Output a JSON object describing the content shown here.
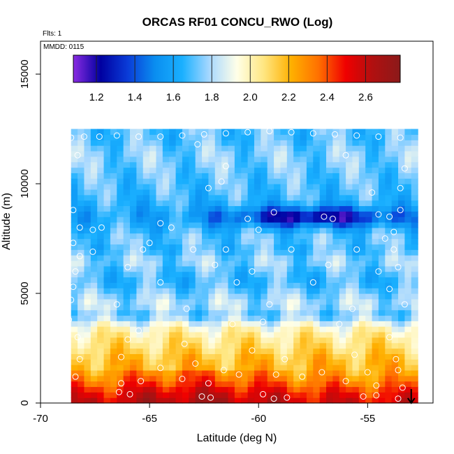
{
  "chart_data": {
    "type": "heatmap",
    "title": "ORCAS RF01 CONCU_RWO (Log)",
    "annotations": [
      "Flts: 1",
      "MMDD: 0115"
    ],
    "xlabel": "Latitude (deg N)",
    "ylabel": "Altitude (m)",
    "xlim": [
      -70,
      -52
    ],
    "ylim": [
      0,
      16500
    ],
    "x_ticks": [
      -70,
      -65,
      -60,
      -55
    ],
    "x_tick_labels": [
      "-70",
      "-65",
      "-60",
      "-55"
    ],
    "y_ticks": [
      0,
      5000,
      10000,
      15000
    ],
    "y_tick_labels": [
      "0",
      "5000",
      "10000",
      "15000"
    ],
    "colorbar": {
      "range": [
        1.08,
        2.78
      ],
      "ticks": [
        1.2,
        1.4,
        1.6,
        1.8,
        2.0,
        2.2,
        2.4,
        2.6
      ],
      "tick_labels": [
        "1.2",
        "1.4",
        "1.6",
        "1.8",
        "2.0",
        "2.2",
        "2.4",
        "2.6"
      ],
      "colors": [
        "#8a2be2",
        "#0000a0",
        "#0a3cd8",
        "#0a8ef0",
        "#1ab0ff",
        "#a8d8ff",
        "#ffffe8",
        "#ffe680",
        "#ffb000",
        "#ff7000",
        "#f00000",
        "#b01010",
        "#8b1a1a"
      ]
    },
    "field": {
      "x_range": [
        -68.6,
        -53.0
      ],
      "y_range": [
        0,
        12400
      ],
      "values_at_altitude": [
        [
          0,
          2.55
        ],
        [
          500,
          2.45
        ],
        [
          1000,
          2.3
        ],
        [
          1500,
          2.2
        ],
        [
          2000,
          2.18
        ],
        [
          2500,
          2.1
        ],
        [
          3000,
          2.05
        ],
        [
          3500,
          1.95
        ],
        [
          4000,
          1.72
        ],
        [
          4500,
          1.82
        ],
        [
          5000,
          1.75
        ],
        [
          5500,
          1.66
        ],
        [
          6000,
          1.7
        ],
        [
          6500,
          1.78
        ],
        [
          7000,
          1.68
        ],
        [
          7500,
          1.72
        ],
        [
          8000,
          1.65
        ],
        [
          8500,
          1.6
        ],
        [
          9000,
          1.64
        ],
        [
          9500,
          1.68
        ],
        [
          10000,
          1.7
        ],
        [
          10500,
          1.72
        ],
        [
          11000,
          1.75
        ],
        [
          11500,
          1.75
        ],
        [
          12000,
          1.7
        ]
      ],
      "low_feature": {
        "lat": -57.5,
        "alt": 8500,
        "min_value": 1.2
      },
      "colors": [
        "#8a2be2",
        "#0000a0",
        "#0a3cd8",
        "#0a8ef0",
        "#1ab0ff",
        "#a8d8ff",
        "#ffffe8",
        "#ffe680",
        "#ffb000",
        "#ff7000",
        "#f00000",
        "#b01010",
        "#8b1a1a"
      ]
    },
    "flight_points": [
      [
        -68.6,
        12100
      ],
      [
        -68.0,
        12150
      ],
      [
        -67.3,
        12150
      ],
      [
        -66.5,
        12200
      ],
      [
        -65.5,
        12150
      ],
      [
        -64.5,
        12150
      ],
      [
        -63.5,
        12200
      ],
      [
        -62.5,
        12250
      ],
      [
        -61.5,
        12300
      ],
      [
        -60.5,
        12350
      ],
      [
        -59.5,
        12400
      ],
      [
        -58.5,
        12350
      ],
      [
        -57.5,
        12300
      ],
      [
        -56.5,
        12250
      ],
      [
        -55.5,
        12200
      ],
      [
        -54.5,
        12150
      ],
      [
        -53.5,
        12100
      ],
      [
        -68.3,
        11300
      ],
      [
        -62.8,
        11800
      ],
      [
        -61.5,
        10800
      ],
      [
        -62.3,
        9800
      ],
      [
        -61.7,
        10100
      ],
      [
        -56.0,
        11300
      ],
      [
        -53.3,
        10700
      ],
      [
        -53.5,
        9800
      ],
      [
        -54.8,
        9600
      ],
      [
        -53.5,
        8800
      ],
      [
        -68.5,
        8800
      ],
      [
        -68.2,
        8000
      ],
      [
        -67.6,
        7900
      ],
      [
        -67.2,
        8000
      ],
      [
        -64.5,
        8200
      ],
      [
        -64.0,
        8000
      ],
      [
        -60.5,
        8400
      ],
      [
        -59.3,
        8700
      ],
      [
        -60.0,
        7900
      ],
      [
        -57.0,
        8500
      ],
      [
        -56.6,
        8400
      ],
      [
        -54.5,
        8600
      ],
      [
        -54.0,
        8500
      ],
      [
        -53.8,
        7800
      ],
      [
        -54.2,
        7500
      ],
      [
        -68.5,
        7300
      ],
      [
        -68.2,
        6700
      ],
      [
        -67.6,
        6900
      ],
      [
        -65.0,
        7300
      ],
      [
        -65.3,
        7000
      ],
      [
        -63.0,
        7000
      ],
      [
        -61.5,
        7000
      ],
      [
        -58.5,
        7000
      ],
      [
        -55.5,
        7000
      ],
      [
        -53.8,
        7000
      ],
      [
        -68.4,
        6000
      ],
      [
        -66.0,
        6200
      ],
      [
        -62.0,
        6300
      ],
      [
        -60.3,
        6000
      ],
      [
        -56.8,
        6300
      ],
      [
        -54.5,
        6000
      ],
      [
        -53.6,
        6200
      ],
      [
        -68.5,
        5300
      ],
      [
        -64.5,
        5500
      ],
      [
        -61.0,
        5500
      ],
      [
        -57.5,
        5500
      ],
      [
        -54.0,
        5200
      ],
      [
        -68.6,
        4700
      ],
      [
        -66.5,
        4500
      ],
      [
        -63.3,
        4300
      ],
      [
        -59.5,
        4500
      ],
      [
        -55.7,
        4300
      ],
      [
        -53.3,
        4500
      ],
      [
        -68.7,
        3800
      ],
      [
        -65.5,
        3300
      ],
      [
        -61.2,
        3600
      ],
      [
        -59.8,
        3700
      ],
      [
        -56.3,
        3600
      ],
      [
        -54.0,
        3000
      ],
      [
        -68.3,
        3000
      ],
      [
        -66.0,
        2900
      ],
      [
        -63.4,
        2700
      ],
      [
        -60.3,
        2400
      ],
      [
        -58.8,
        2000
      ],
      [
        -55.6,
        2200
      ],
      [
        -53.7,
        2000
      ],
      [
        -68.2,
        2000
      ],
      [
        -66.3,
        2100
      ],
      [
        -64.5,
        1600
      ],
      [
        -62.9,
        1800
      ],
      [
        -61.6,
        1500
      ],
      [
        -59.2,
        1300
      ],
      [
        -57.1,
        1400
      ],
      [
        -55.0,
        1400
      ],
      [
        -53.6,
        1500
      ],
      [
        -68.4,
        1200
      ],
      [
        -66.3,
        900
      ],
      [
        -65.4,
        1000
      ],
      [
        -63.5,
        1100
      ],
      [
        -62.3,
        900
      ],
      [
        -60.9,
        1300
      ],
      [
        -58.0,
        1200
      ],
      [
        -56.0,
        1000
      ],
      [
        -54.6,
        800
      ],
      [
        -53.4,
        700
      ],
      [
        -66.4,
        500
      ],
      [
        -65.9,
        400
      ],
      [
        -62.6,
        300
      ],
      [
        -62.2,
        250
      ],
      [
        -59.8,
        400
      ],
      [
        -59.3,
        200
      ],
      [
        -58.7,
        250
      ],
      [
        -55.2,
        300
      ],
      [
        -54.6,
        350
      ],
      [
        -53.6,
        200
      ]
    ],
    "final_point": [
      -53.0,
      0
    ]
  }
}
